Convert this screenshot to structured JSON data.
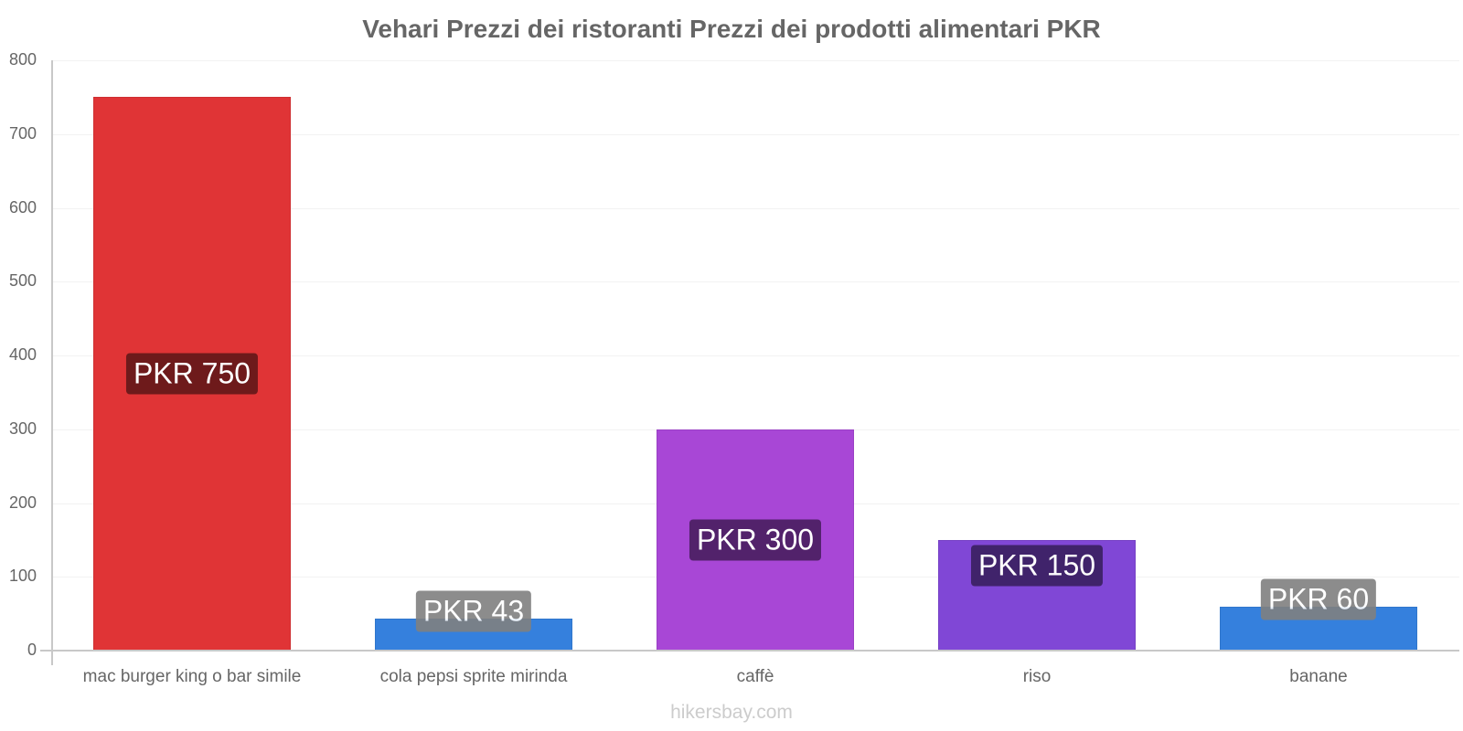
{
  "chart_data": {
    "type": "bar",
    "title": "Vehari Prezzi dei ristoranti Prezzi dei prodotti alimentari PKR",
    "categories": [
      "mac burger king o bar simile",
      "cola pepsi sprite mirinda",
      "caffè",
      "riso",
      "banane"
    ],
    "values": [
      750,
      43,
      300,
      150,
      60
    ],
    "value_labels": [
      "PKR 750",
      "PKR 43",
      "PKR 300",
      "PKR 150",
      "PKR 60"
    ],
    "colors": [
      "#e03436",
      "#3580dd",
      "#a847d6",
      "#8047d6",
      "#3580dd"
    ],
    "label_bg_colors": [
      "#6e1a1b",
      "#808080",
      "#52226b",
      "#40236b",
      "#808080"
    ],
    "xlabel": "",
    "ylabel": "",
    "ylim": [
      0,
      800
    ],
    "yticks": [
      0,
      100,
      200,
      300,
      400,
      500,
      600,
      700,
      800
    ],
    "grid": true,
    "legend": "none"
  },
  "footer": "hikersbay.com"
}
